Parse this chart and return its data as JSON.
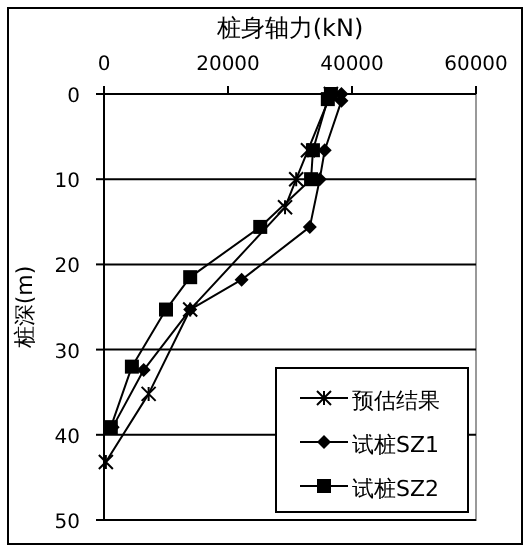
{
  "chart_data": {
    "type": "line",
    "title": "桩身轴力(kN)",
    "ylabel": "桩深(m)",
    "xlim": [
      0,
      60000
    ],
    "xticks": [
      0,
      20000,
      40000,
      60000
    ],
    "ylim": [
      50,
      0
    ],
    "yticks": [
      0,
      10,
      20,
      30,
      40,
      50
    ],
    "grid": "y",
    "legend": "bottom right",
    "line_style": "solid",
    "series": [
      {
        "name": "预估结果",
        "color": "#000000",
        "marker": "cross",
        "x": [
          36600,
          32900,
          31000,
          29200,
          13900,
          7200,
          300
        ],
        "values": [
          0,
          6.6,
          10,
          13.3,
          25.3,
          35.2,
          43.2
        ]
      },
      {
        "name": "试桩SZ1",
        "color": "#000000",
        "marker": "diamond",
        "x": [
          38300,
          38300,
          35600,
          34800,
          33200,
          22200,
          13900,
          6400,
          1400
        ],
        "values": [
          0,
          0.8,
          6.6,
          10,
          15.6,
          21.8,
          25.3,
          32.4,
          39.1
        ]
      },
      {
        "name": "试桩SZ2",
        "color": "#000000",
        "marker": "square",
        "x": [
          36600,
          36100,
          33700,
          33400,
          25200,
          13900,
          10000,
          4500,
          1100
        ],
        "values": [
          0,
          0.6,
          6.6,
          10,
          15.6,
          21.5,
          25.3,
          32,
          39.1
        ]
      }
    ]
  }
}
